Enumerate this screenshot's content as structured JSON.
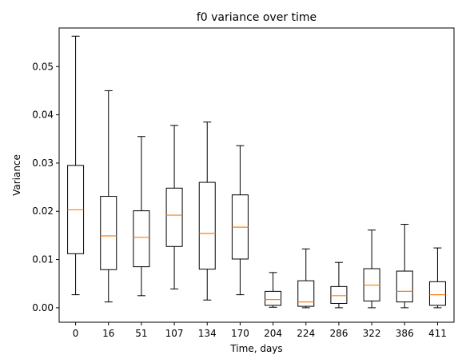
{
  "chart_data": {
    "type": "box",
    "title": "f0 variance over time",
    "xlabel": "Time, days",
    "ylabel": "Variance",
    "ylim": [
      -0.003,
      0.058
    ],
    "yticks": [
      "0.00",
      "0.01",
      "0.02",
      "0.03",
      "0.04",
      "0.05"
    ],
    "ytick_values": [
      0.0,
      0.01,
      0.02,
      0.03,
      0.04,
      0.05
    ],
    "categories": [
      "0",
      "16",
      "51",
      "107",
      "134",
      "170",
      "204",
      "224",
      "286",
      "322",
      "386",
      "411"
    ],
    "boxes": [
      {
        "whislo": 0.0027,
        "q1": 0.0112,
        "med": 0.0203,
        "q3": 0.0295,
        "whishi": 0.0563
      },
      {
        "whislo": 0.0012,
        "q1": 0.0079,
        "med": 0.0149,
        "q3": 0.0231,
        "whishi": 0.045
      },
      {
        "whislo": 0.0025,
        "q1": 0.0085,
        "med": 0.0146,
        "q3": 0.0201,
        "whishi": 0.0355
      },
      {
        "whislo": 0.0039,
        "q1": 0.0127,
        "med": 0.0192,
        "q3": 0.0248,
        "whishi": 0.0378
      },
      {
        "whislo": 0.0016,
        "q1": 0.008,
        "med": 0.0154,
        "q3": 0.026,
        "whishi": 0.0385
      },
      {
        "whislo": 0.0027,
        "q1": 0.0101,
        "med": 0.0167,
        "q3": 0.0234,
        "whishi": 0.0336
      },
      {
        "whislo": 0.0001,
        "q1": 0.0005,
        "med": 0.0017,
        "q3": 0.0034,
        "whishi": 0.0073
      },
      {
        "whislo": 0.0,
        "q1": 0.0003,
        "med": 0.0012,
        "q3": 0.0056,
        "whishi": 0.0122
      },
      {
        "whislo": 0.0,
        "q1": 0.0009,
        "med": 0.0025,
        "q3": 0.0044,
        "whishi": 0.0094
      },
      {
        "whislo": 0.0,
        "q1": 0.0014,
        "med": 0.0047,
        "q3": 0.0081,
        "whishi": 0.0161
      },
      {
        "whislo": 0.0,
        "q1": 0.0012,
        "med": 0.0034,
        "q3": 0.0076,
        "whishi": 0.0173
      },
      {
        "whislo": 0.0,
        "q1": 0.0005,
        "med": 0.0027,
        "q3": 0.0054,
        "whishi": 0.0124
      }
    ],
    "grid": false,
    "colors": {
      "box": "#000000",
      "median": "#ff7f0e",
      "background": "#ffffff"
    }
  }
}
